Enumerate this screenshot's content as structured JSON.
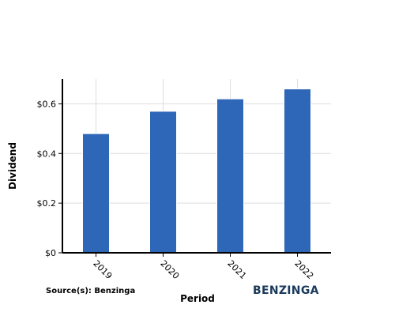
{
  "source_note": "Source(s): Benzinga",
  "brand": {
    "name": "BENZINGA",
    "color": "#1a3a5c"
  },
  "colors": {
    "bar": "#2e67b8",
    "bar_edge": "#ffffff",
    "grid": "#dddddd",
    "axis": "#000000"
  },
  "chart_data": {
    "type": "bar",
    "categories": [
      "2019",
      "2020",
      "2021",
      "2022"
    ],
    "values": [
      0.48,
      0.57,
      0.62,
      0.66
    ],
    "title": "",
    "xlabel": "Period",
    "ylabel": "Dividend",
    "ylim": [
      0,
      0.7
    ],
    "yticks": [
      0,
      0.2,
      0.4,
      0.6
    ],
    "ytick_labels": [
      "$0",
      "$0.2",
      "$0.4",
      "$0.6"
    ],
    "grid": true,
    "legend": "none"
  }
}
